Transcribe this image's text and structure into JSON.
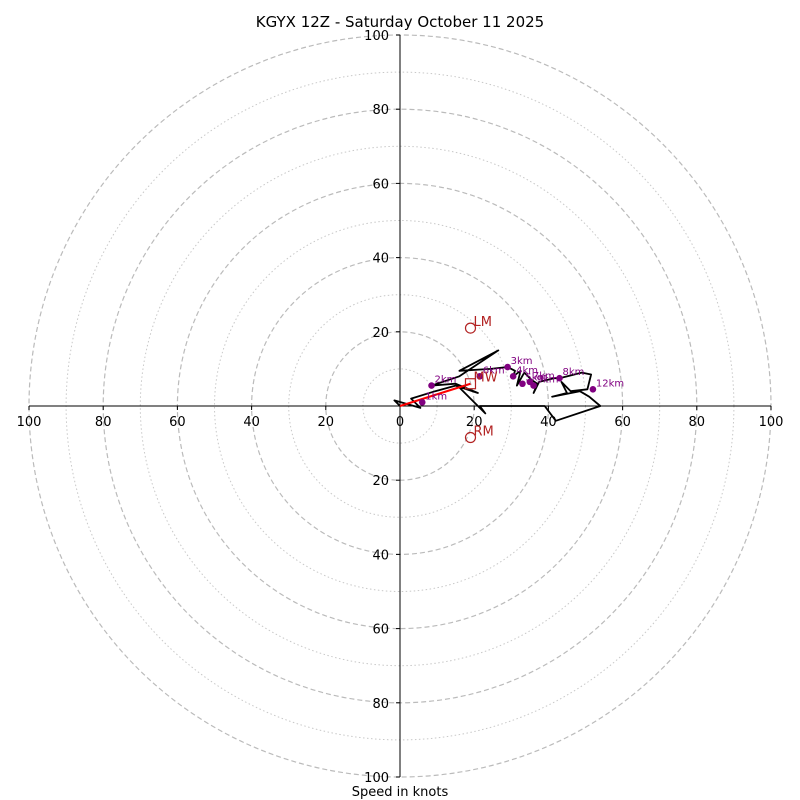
{
  "chart_data": {
    "type": "hodograph",
    "title": "KGYX 12Z - Saturday October 11 2025",
    "xlabel": "Speed in knots",
    "max_speed": 100,
    "major_rings": [
      20,
      40,
      60,
      80,
      100
    ],
    "minor_rings": [
      10,
      30,
      50,
      70,
      90
    ],
    "tick_values": [
      20,
      40,
      60,
      80,
      100
    ],
    "x_tick_labels": [
      "100",
      "80",
      "60",
      "40",
      "20",
      "0",
      "20",
      "40",
      "60",
      "80",
      "100"
    ],
    "x_tick_values": [
      -100,
      -80,
      -60,
      -40,
      -20,
      0,
      20,
      40,
      60,
      80,
      100
    ],
    "y_tick_labels_top": [
      "20",
      "40",
      "60",
      "80",
      "100"
    ],
    "y_tick_labels_bottom": [
      "20",
      "40",
      "60",
      "80",
      "100"
    ],
    "colors": {
      "hodograph_line": "#000000",
      "height_markers": "#800080",
      "storm_motion": "#b22222",
      "shear_vector": "#ff0000",
      "grid": "#bbbbbb"
    },
    "hodograph_trace": [
      [
        0,
        0
      ],
      [
        -1.5,
        1.5
      ],
      [
        5.5,
        -0.5
      ],
      [
        3,
        2
      ],
      [
        9.5,
        4
      ],
      [
        15,
        5.5
      ],
      [
        21,
        3.5
      ],
      [
        15,
        6
      ],
      [
        8.5,
        5.5
      ],
      [
        16,
        8
      ],
      [
        26.5,
        15
      ],
      [
        16,
        9.5
      ],
      [
        24.5,
        10
      ],
      [
        29,
        10.5
      ],
      [
        31,
        9.5
      ],
      [
        30.5,
        8
      ],
      [
        32.5,
        9.5
      ],
      [
        31.5,
        5.5
      ],
      [
        33.5,
        9
      ],
      [
        35.5,
        7
      ],
      [
        37,
        6
      ],
      [
        36,
        3.5
      ],
      [
        37.5,
        6.5
      ],
      [
        41.5,
        7.5
      ],
      [
        43,
        7.5
      ],
      [
        49,
        9
      ],
      [
        51.5,
        8.5
      ],
      [
        50.5,
        4.5
      ],
      [
        46,
        4
      ],
      [
        43.5,
        6.5
      ],
      [
        45,
        3.5
      ],
      [
        41,
        2.5
      ],
      [
        48.5,
        4
      ],
      [
        51,
        2.5
      ],
      [
        54,
        0
      ],
      [
        42,
        -4
      ],
      [
        39,
        0
      ],
      [
        32,
        0
      ],
      [
        21.5,
        0
      ],
      [
        23,
        -2
      ],
      [
        15,
        6
      ]
    ],
    "height_markers": [
      {
        "label": "1km",
        "u": 6,
        "v": 1
      },
      {
        "label": "2km",
        "u": 8.5,
        "v": 5.5
      },
      {
        "label": "3km",
        "u": 29,
        "v": 10.5
      },
      {
        "label": "4km",
        "u": 30.5,
        "v": 8
      },
      {
        "label": "5km",
        "u": 33,
        "v": 6
      },
      {
        "label": "6km",
        "u": 21.5,
        "v": 8
      },
      {
        "label": "7km",
        "u": 35,
        "v": 6.5
      },
      {
        "label": "8km",
        "u": 43,
        "v": 7.5
      },
      {
        "label": "9km",
        "u": 36,
        "v": 5.5
      },
      {
        "label": "12km",
        "u": 52,
        "v": 4.5
      }
    ],
    "storm_motion": [
      {
        "label": "LM",
        "u": 19,
        "v": 21,
        "marker": "circle"
      },
      {
        "label": "RM",
        "u": 19,
        "v": -8.5,
        "marker": "circle"
      },
      {
        "label": "MW",
        "u": 19,
        "v": 6,
        "marker": "square"
      }
    ],
    "shear_vector": {
      "from": [
        0,
        0
      ],
      "to": [
        19,
        6
      ]
    }
  }
}
